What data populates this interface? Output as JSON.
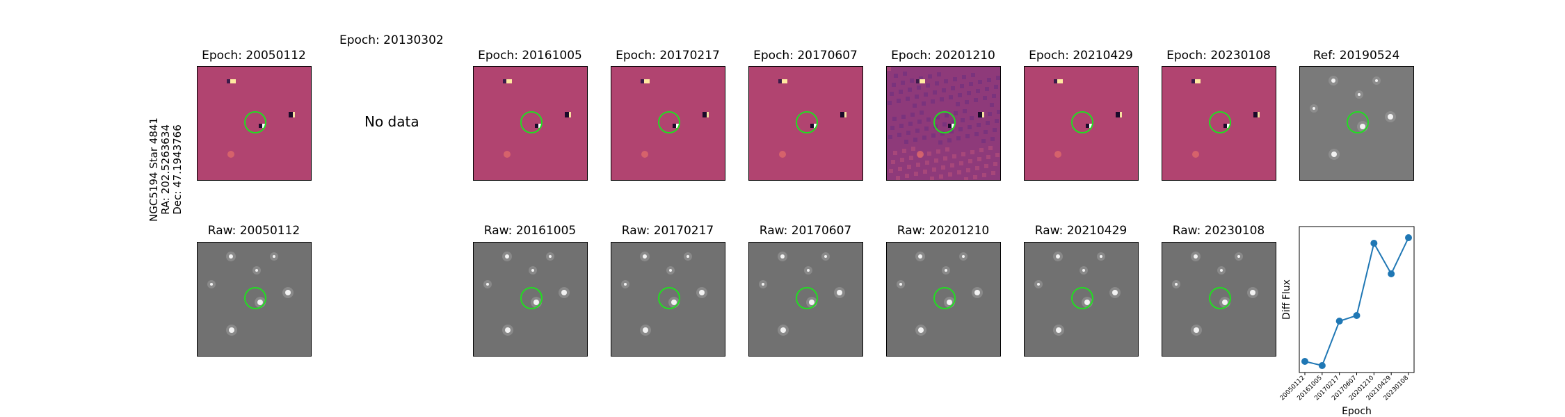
{
  "side_label": [
    "NGC5194 Star 4841",
    "RA: 202.5263634",
    "Dec: 47.1943766"
  ],
  "missing_epoch": {
    "title": "Epoch: 20130302",
    "message": "No data"
  },
  "top_row": [
    {
      "title": "Epoch: 20050112",
      "kind": "diff"
    },
    {
      "title": "Epoch: 20161005",
      "kind": "diff"
    },
    {
      "title": "Epoch: 20170217",
      "kind": "diff"
    },
    {
      "title": "Epoch: 20170607",
      "kind": "diff"
    },
    {
      "title": "Epoch: 20201210",
      "kind": "diff-noisy"
    },
    {
      "title": "Epoch: 20210429",
      "kind": "diff"
    },
    {
      "title": "Epoch: 20230108",
      "kind": "diff"
    },
    {
      "title": "Ref: 20190524",
      "kind": "ref"
    }
  ],
  "bottom_row": [
    {
      "title": "Raw: 20050112"
    },
    {
      "title": "Raw: 20161005"
    },
    {
      "title": "Raw: 20170217"
    },
    {
      "title": "Raw: 20170607"
    },
    {
      "title": "Raw: 20201210"
    },
    {
      "title": "Raw: 20210429"
    },
    {
      "title": "Raw: 20230108"
    }
  ],
  "colors": {
    "marker_circle": "#22dd22",
    "line": "#1f77b4",
    "diff_bg": "#b0406a",
    "raw_bg": "#6f6f6f"
  },
  "chart_data": {
    "type": "line",
    "x": [
      "20050112",
      "20161005",
      "20170217",
      "20170607",
      "20201210",
      "20210429",
      "20230108"
    ],
    "y": [
      0.08,
      0.05,
      0.37,
      0.41,
      0.93,
      0.71,
      0.97
    ],
    "ylabel": "Diff Flux",
    "xlabel": "Epoch",
    "ylim": [
      0,
      1.05
    ],
    "grid": false,
    "y_ticks_shown": false
  }
}
